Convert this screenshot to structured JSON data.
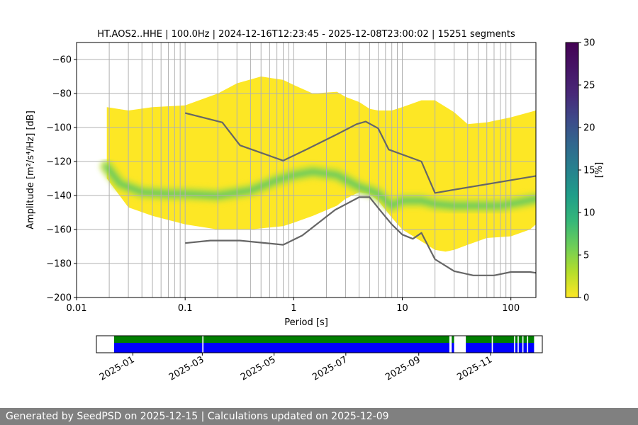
{
  "chart_data": [
    {
      "type": "heatmap",
      "title": "HT.AOS2..HHE | 100.0Hz | 2024-12-16T12:23:45 - 2025-12-08T23:00:02 | 15251 segments",
      "xlabel": "Period [s]",
      "ylabel": "Amplitude [m²/s⁴/Hz] [dB]",
      "xscale": "log",
      "xlim": [
        0.01,
        170
      ],
      "ylim": [
        -200,
        -50
      ],
      "xticks": [
        {
          "value": 0.01,
          "label": "0.01"
        },
        {
          "value": 0.1,
          "label": "0.1"
        },
        {
          "value": 1,
          "label": "1"
        },
        {
          "value": 10,
          "label": "10"
        },
        {
          "value": 100,
          "label": "100"
        }
      ],
      "yticks": [
        -60,
        -80,
        -100,
        -120,
        -140,
        -160,
        -180,
        -200
      ],
      "grid": true,
      "colormap": "viridis_r",
      "colorbar": {
        "label": "[%]",
        "range": [
          0,
          30
        ],
        "ticks": [
          0,
          5,
          10,
          15,
          20,
          25,
          30
        ]
      },
      "density_mode": {
        "period": [
          0.019,
          0.025,
          0.04,
          0.07,
          0.1,
          0.2,
          0.4,
          0.7,
          1.0,
          1.5,
          2.5,
          4,
          5,
          6,
          8,
          10,
          15,
          20,
          30,
          50,
          80,
          120,
          170
        ],
        "amplitude": [
          -123,
          -133,
          -138,
          -139,
          -139,
          -140,
          -137,
          -131,
          -128,
          -126,
          -128,
          -135,
          -137,
          -139,
          -146,
          -143,
          -143,
          -145,
          -146,
          -146,
          -146,
          -144,
          -142
        ]
      },
      "density_upper_envelope": {
        "period": [
          0.019,
          0.03,
          0.05,
          0.1,
          0.2,
          0.3,
          0.5,
          0.8,
          1.0,
          1.5,
          2.5,
          3,
          4,
          5,
          6,
          8,
          10,
          15,
          20,
          30,
          40,
          60,
          100,
          170
        ],
        "amplitude": [
          -88,
          -90,
          -88,
          -87,
          -80,
          -74,
          -70,
          -72,
          -75,
          -80,
          -79,
          -82,
          -85,
          -89,
          -90,
          -90,
          -88,
          -84,
          -84,
          -91,
          -98,
          -97,
          -94,
          -90
        ]
      },
      "density_lower_envelope": {
        "period": [
          0.019,
          0.03,
          0.05,
          0.1,
          0.2,
          0.4,
          0.8,
          1.0,
          1.5,
          2.5,
          3,
          4,
          5,
          6,
          8,
          10,
          15,
          20,
          25,
          30,
          40,
          60,
          100,
          150,
          170
        ],
        "amplitude": [
          -130,
          -147,
          -152,
          -157,
          -160,
          -160,
          -158,
          -156,
          -152,
          -146,
          -142,
          -138,
          -139,
          -143,
          -153,
          -160,
          -167,
          -172,
          -173,
          -172,
          -169,
          -165,
          -164,
          -160,
          -157
        ]
      },
      "series": [
        {
          "name": "",
          "x": [
            0.1,
            0.22,
            0.32,
            0.8,
            1.3,
            2.5,
            3.8,
            4.6,
            6.0,
            7.5,
            15,
            20,
            170
          ],
          "y": [
            -91.5,
            -97,
            -110.5,
            -119.5,
            -113,
            -104,
            -98,
            -96.5,
            -100.5,
            -113,
            -120,
            -138.5,
            -128.5
          ]
        },
        {
          "name": "",
          "x": [
            0.1,
            0.17,
            0.32,
            0.8,
            1.2,
            2.4,
            4,
            5,
            6.3,
            8,
            10,
            12.5,
            15,
            20,
            30,
            45,
            70,
            100,
            150,
            170
          ],
          "y": [
            -168,
            -166.5,
            -166.5,
            -169,
            -163.5,
            -148.5,
            -141,
            -141,
            -149,
            -157,
            -163,
            -165.5,
            -162,
            -177.5,
            -184.5,
            -187,
            -187,
            -185,
            -185,
            -185.5
          ]
        }
      ]
    },
    {
      "type": "timeline",
      "xticks": [
        "2025-01",
        "2025-03",
        "2025-05",
        "2025-07",
        "2025-09",
        "2025-11"
      ],
      "x_range": [
        "2024-12-01",
        "2025-12-15"
      ],
      "available": [
        "2024-12-16",
        "2025-12-08"
      ],
      "gaps": [
        [
          "2025-03-01",
          "2025-03-02"
        ],
        [
          "2025-09-27",
          "2025-09-29"
        ],
        [
          "2025-10-01",
          "2025-10-11"
        ],
        [
          "2025-11-02",
          "2025-11-03"
        ],
        [
          "2025-11-21",
          "2025-11-22"
        ],
        [
          "2025-11-24",
          "2025-11-25"
        ],
        [
          "2025-11-28",
          "2025-11-29"
        ],
        [
          "2025-12-02",
          "2025-12-03"
        ]
      ],
      "upper_color": "#007f00",
      "lower_color": "#0000ff"
    }
  ],
  "footer": "Generated by SeedPSD on 2025-12-15 | Calculations updated on 2025-12-09"
}
